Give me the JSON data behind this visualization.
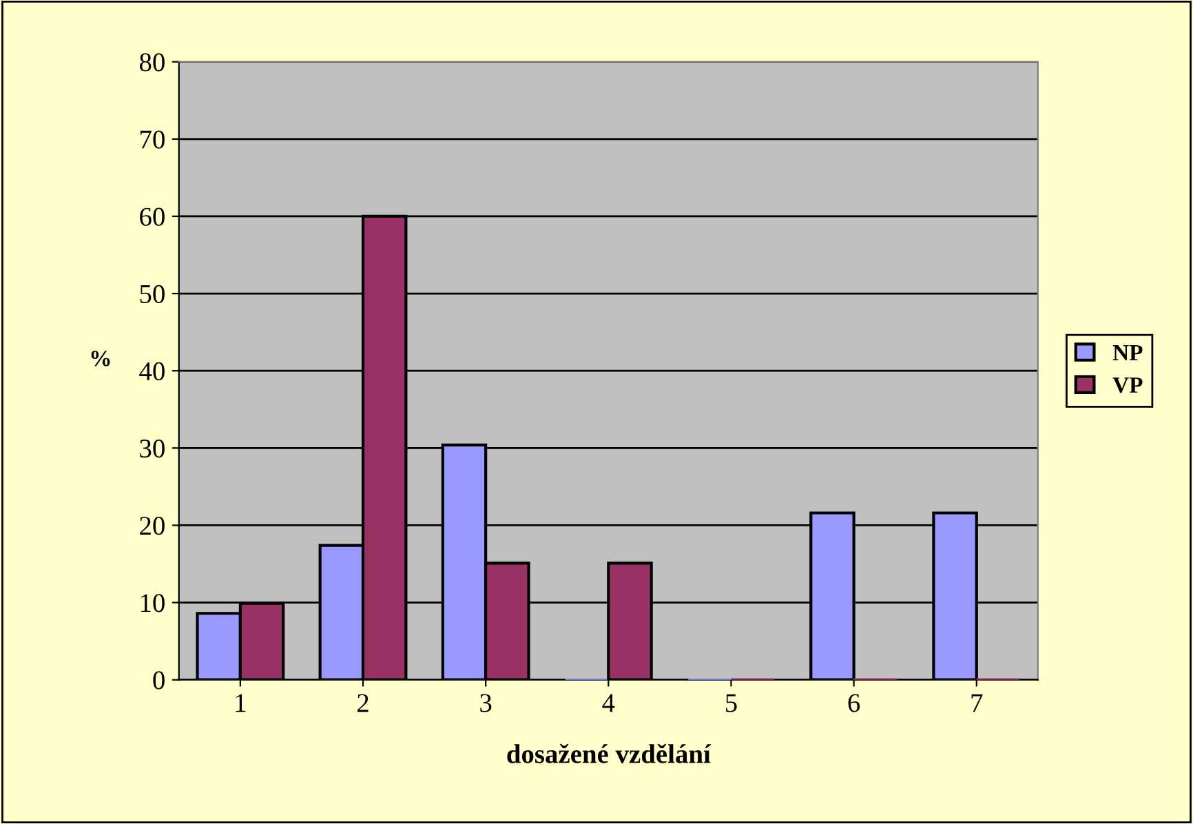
{
  "chart_data": {
    "type": "bar",
    "xlabel": "dosažené vzdělání",
    "ylabel": "%",
    "categories": [
      "1",
      "2",
      "3",
      "4",
      "5",
      "6",
      "7"
    ],
    "series": [
      {
        "name": "NP",
        "color": "#9999ff",
        "values": [
          8.6,
          17.4,
          30.4,
          0,
          0,
          21.6,
          21.6
        ]
      },
      {
        "name": "VP",
        "color": "#993366",
        "values": [
          9.9,
          60,
          15.1,
          15.1,
          0,
          0,
          0
        ]
      }
    ],
    "ylim": [
      0,
      80
    ],
    "yticks": [
      0,
      10,
      20,
      30,
      40,
      50,
      60,
      70,
      80
    ],
    "grid": "y",
    "legend": "right"
  }
}
